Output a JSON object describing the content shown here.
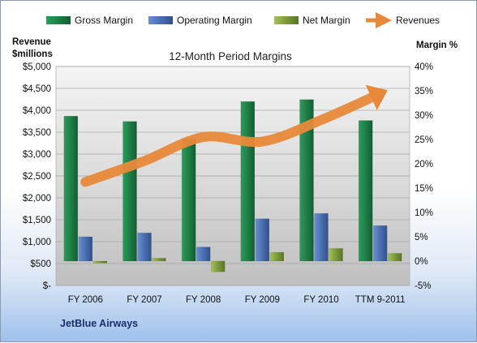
{
  "chart_data": {
    "type": "bar",
    "title": "12-Month Period Margins",
    "categories": [
      "FY 2006",
      "FY 2007",
      "FY 2008",
      "FY 2009",
      "FY 2010",
      "TTM 9-2011"
    ],
    "series": [
      {
        "name": "Gross Margin",
        "axis": "right",
        "values": [
          29.8,
          28.7,
          25.2,
          32.8,
          33.2,
          28.9
        ],
        "color": "#1e7f46"
      },
      {
        "name": "Operating Margin",
        "axis": "right",
        "values": [
          5.0,
          5.8,
          2.9,
          8.7,
          9.8,
          7.3
        ],
        "color": "#4a6fb0"
      },
      {
        "name": "Net Margin",
        "axis": "right",
        "values": [
          -0.4,
          0.6,
          -2.2,
          1.8,
          2.6,
          1.6
        ],
        "color": "#7a9a3a"
      },
      {
        "name": "Revenues",
        "axis": "left",
        "type": "line",
        "values": [
          2363,
          2842,
          3388,
          3286,
          3779,
          4382
        ],
        "color": "#e8893a"
      }
    ],
    "left_axis": {
      "label_line1": "Revenue",
      "label_line2": "$millions",
      "min": 0,
      "max": 5000,
      "step": 500,
      "ticks": [
        "$-",
        "$500",
        "$1,000",
        "$1,500",
        "$2,000",
        "$2,500",
        "$3,000",
        "$3,500",
        "$4,000",
        "$4,500",
        "$5,000"
      ]
    },
    "right_axis": {
      "label": "Margin %",
      "min": -5,
      "max": 40,
      "step": 5,
      "ticks": [
        "-5%",
        "0%",
        "5%",
        "10%",
        "15%",
        "20%",
        "25%",
        "30%",
        "35%",
        "40%"
      ]
    },
    "legend_position": "top",
    "grid": true,
    "footer": "JetBlue Airways"
  }
}
